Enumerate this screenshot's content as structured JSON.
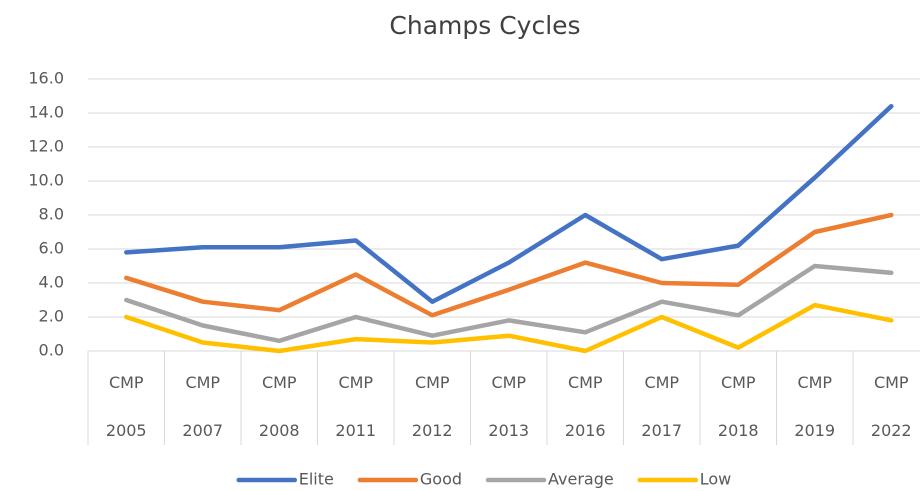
{
  "chart_data": {
    "type": "line",
    "title": "Champs Cycles",
    "categories": [
      "CMP 2005",
      "CMP 2007",
      "CMP 2008",
      "CMP 2011",
      "CMP 2012",
      "CMP 2013",
      "CMP 2016",
      "CMP 2017",
      "CMP 2018",
      "CMP 2019",
      "CMP 2022"
    ],
    "series": [
      {
        "name": "Elite",
        "color": "#4472c4",
        "values": [
          5.8,
          6.1,
          6.1,
          6.5,
          2.9,
          5.2,
          8.0,
          5.4,
          6.2,
          10.2,
          14.4
        ]
      },
      {
        "name": "Good",
        "color": "#ed7d31",
        "values": [
          4.3,
          2.9,
          2.4,
          4.5,
          2.1,
          3.6,
          5.2,
          4.0,
          3.9,
          7.0,
          8.0
        ]
      },
      {
        "name": "Average",
        "color": "#a5a5a5",
        "values": [
          3.0,
          1.5,
          0.6,
          2.0,
          0.9,
          1.8,
          1.1,
          2.9,
          2.1,
          5.0,
          4.6
        ]
      },
      {
        "name": "Low",
        "color": "#ffc000",
        "values": [
          2.0,
          0.5,
          0.0,
          0.7,
          0.5,
          0.9,
          0.0,
          2.0,
          0.2,
          2.7,
          1.8
        ]
      }
    ],
    "ylim": [
      0,
      16
    ],
    "yticks": [
      {
        "value": 0,
        "label": "0.0"
      },
      {
        "value": 2,
        "label": "2.0"
      },
      {
        "value": 4,
        "label": "4.0"
      },
      {
        "value": 6,
        "label": "6.0"
      },
      {
        "value": 8,
        "label": "8.0"
      },
      {
        "value": 10,
        "label": "10.0"
      },
      {
        "value": 12,
        "label": "12.0"
      },
      {
        "value": 14,
        "label": "14.0"
      },
      {
        "value": 16,
        "label": "16.0"
      }
    ],
    "grid": true,
    "legend": "bottom"
  }
}
